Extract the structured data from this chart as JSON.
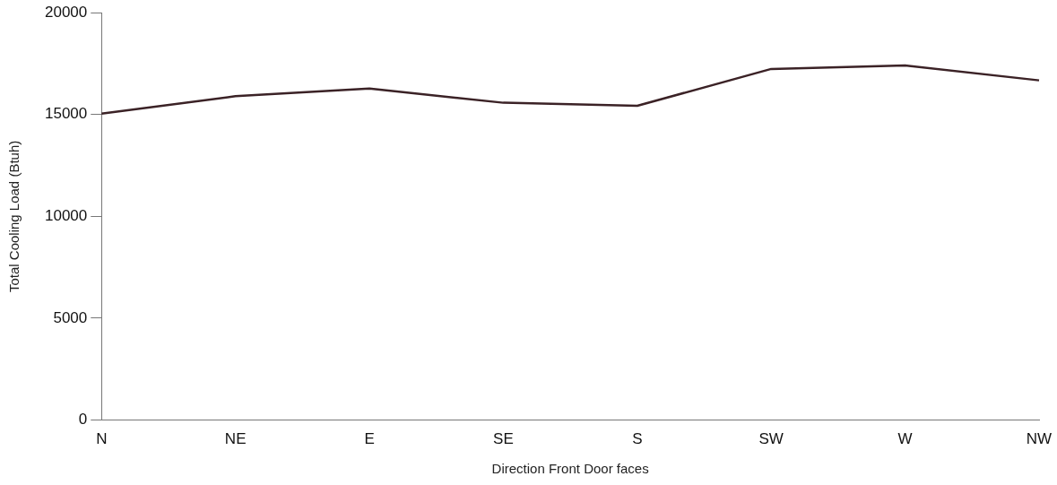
{
  "chart_data": {
    "type": "line",
    "xlabel": "Direction Front Door faces",
    "ylabel": "Total Cooling Load (Btuh)",
    "categories": [
      "N",
      "NE",
      "E",
      "SE",
      "S",
      "SW",
      "W",
      "NW"
    ],
    "series": [
      {
        "color": "#3b2226",
        "values": [
          15050,
          15900,
          16280,
          15580,
          15430,
          17240,
          17410,
          16680
        ]
      }
    ],
    "ylim": [
      0,
      20000
    ],
    "yticks": [
      0,
      5000,
      10000,
      15000,
      20000
    ],
    "grid": false,
    "legend": false,
    "marker": "none",
    "line_style": "solid"
  }
}
